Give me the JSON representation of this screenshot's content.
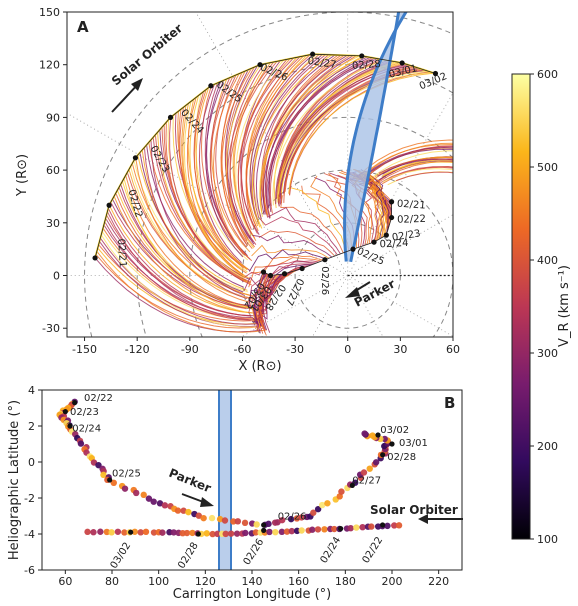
{
  "panel_a": {
    "letter": "A",
    "xlabel": "X (R⊙)",
    "ylabel": "Y (R⊙)",
    "xticks": [
      -150,
      -120,
      -90,
      -60,
      -30,
      0,
      30,
      60
    ],
    "yticks": [
      -30,
      0,
      30,
      60,
      90,
      120,
      150
    ],
    "solo_label": "Solar Orbiter",
    "parker_label": "Parker",
    "solo_dates": [
      "02/21",
      "02/22",
      "02/23",
      "02/24",
      "02/25",
      "02/26",
      "02/27",
      "02/28",
      "03/01",
      "03/02"
    ],
    "parker_dates": [
      "02/21",
      "02/22",
      "02/23",
      "02/24",
      "02/25",
      "02/26",
      "02/27",
      "02/28",
      "03/01",
      "03/02"
    ]
  },
  "panel_b": {
    "letter": "B",
    "xlabel": "Carrington Longitude (°)",
    "ylabel": "Heliographic Latitude (°)",
    "xticks": [
      60,
      80,
      100,
      120,
      140,
      160,
      180,
      200,
      220
    ],
    "yticks": [
      -6,
      -4,
      -2,
      0,
      2,
      4
    ],
    "parker_label": "Parker",
    "solo_label": "Solar Orbiter",
    "date_labels": [
      "02/22",
      "02/23",
      "02/24",
      "02/25",
      "02/26",
      "02/27",
      "02/28",
      "03/01",
      "03/02",
      "03/02",
      "02/28",
      "02/26",
      "02/24",
      "02/22"
    ]
  },
  "colorbar": {
    "label": "V_R (km s⁻¹)",
    "ticks": [
      100,
      200,
      300,
      400,
      500,
      600
    ],
    "colormap": [
      "#000004",
      "#320a5e",
      "#781c6d",
      "#bc3754",
      "#ed6925",
      "#fbb61a",
      "#fcffa4"
    ]
  },
  "chart_data": [
    {
      "type": "scatter",
      "panel": "A",
      "xlabel": "X (R⊙)",
      "ylabel": "Y (R⊙)",
      "xlim": [
        -160,
        60
      ],
      "ylim": [
        -35,
        150
      ],
      "series": [
        {
          "name": "Solar Orbiter",
          "points": [
            {
              "label": "02/21",
              "x": -144,
              "y": 10
            },
            {
              "label": "02/22",
              "x": -136,
              "y": 40
            },
            {
              "label": "02/23",
              "x": -121,
              "y": 67
            },
            {
              "label": "02/24",
              "x": -101,
              "y": 90
            },
            {
              "label": "02/25",
              "x": -78,
              "y": 108
            },
            {
              "label": "02/26",
              "x": -50,
              "y": 120
            },
            {
              "label": "02/27",
              "x": -20,
              "y": 126
            },
            {
              "label": "02/28",
              "x": 8,
              "y": 125
            },
            {
              "label": "03/01",
              "x": 31,
              "y": 121
            },
            {
              "label": "03/02",
              "x": 50,
              "y": 115
            }
          ]
        },
        {
          "name": "Parker",
          "points": [
            {
              "label": "02/21",
              "x": 25,
              "y": 42
            },
            {
              "label": "02/22",
              "x": 25,
              "y": 33
            },
            {
              "label": "02/23",
              "x": 22,
              "y": 23
            },
            {
              "label": "02/24",
              "x": 15,
              "y": 19
            },
            {
              "label": "02/25",
              "x": 3,
              "y": 15
            },
            {
              "label": "02/26",
              "x": -13,
              "y": 9
            },
            {
              "label": "02/27",
              "x": -26,
              "y": 4
            },
            {
              "label": "02/28",
              "x": -36,
              "y": 1
            },
            {
              "label": "03/01",
              "x": -44,
              "y": 0
            },
            {
              "label": "03/02",
              "x": -48,
              "y": 2
            }
          ]
        }
      ]
    },
    {
      "type": "scatter",
      "panel": "B",
      "xlabel": "Carrington Longitude (°)",
      "ylabel": "Heliographic Latitude (°)",
      "xlim": [
        50,
        230
      ],
      "ylim": [
        -6,
        4
      ],
      "highlight_band": [
        120,
        125
      ],
      "series": [
        {
          "name": "Parker",
          "points": [
            {
              "label": "02/22",
              "x": 64,
              "y": 3.3
            },
            {
              "label": "02/23",
              "x": 60,
              "y": 2.8
            },
            {
              "label": "02/24",
              "x": 62,
              "y": 2.0
            },
            {
              "label": "02/25",
              "x": 79,
              "y": -1.0
            },
            {
              "label": "02/26",
              "x": 145,
              "y": -3.5
            },
            {
              "label": "02/27",
              "x": 183,
              "y": -1.3
            },
            {
              "label": "02/28",
              "x": 196,
              "y": 0.4
            },
            {
              "label": "03/01",
              "x": 200,
              "y": 1.0
            },
            {
              "label": "03/02",
              "x": 194,
              "y": 1.5
            }
          ]
        },
        {
          "name": "Solar Orbiter",
          "points": [
            {
              "label": "03/02",
              "x": 88,
              "y": -3.9
            },
            {
              "label": "02/28",
              "x": 117,
              "y": -4.0
            },
            {
              "label": "02/26",
              "x": 145,
              "y": -3.8
            },
            {
              "label": "02/24",
              "x": 178,
              "y": -3.7
            },
            {
              "label": "02/22",
              "x": 196,
              "y": -3.5
            }
          ]
        }
      ]
    }
  ]
}
